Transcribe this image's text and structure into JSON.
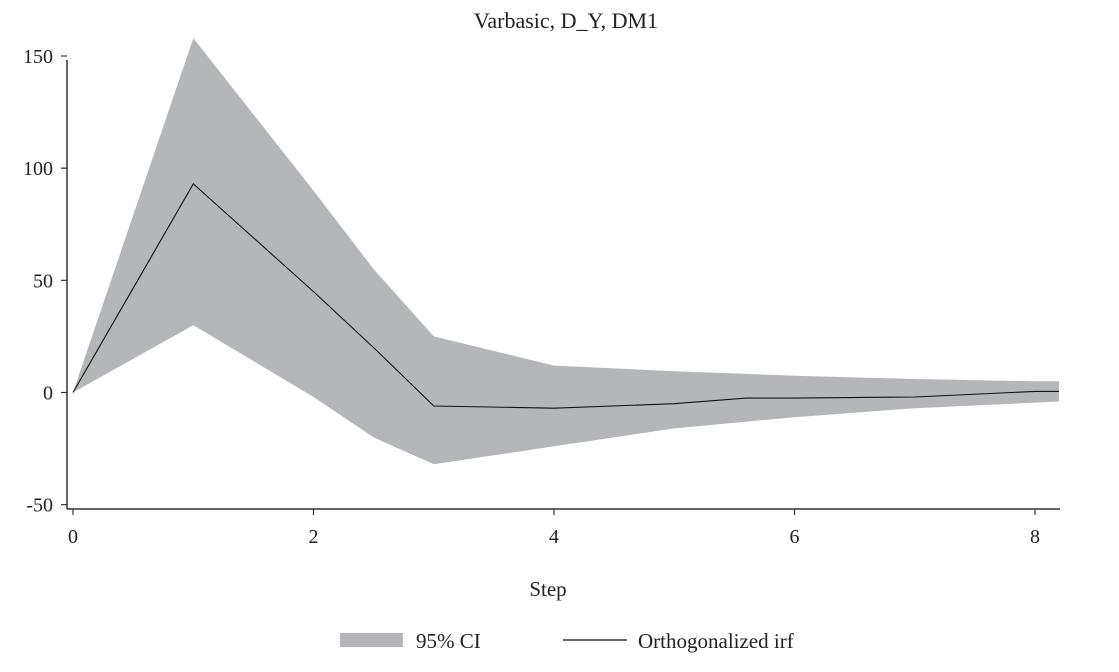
{
  "chart_data": {
    "type": "area",
    "title": "Varbasic, D_Y, DM1",
    "xlabel": "Step",
    "ylabel": "",
    "xlim": [
      0,
      8.2
    ],
    "ylim": [
      -50,
      150
    ],
    "x_ticks": [
      0,
      2,
      4,
      6,
      8
    ],
    "y_ticks": [
      -50,
      0,
      50,
      100,
      150
    ],
    "grid": false,
    "legend_position": "bottom-center",
    "series": [
      {
        "name": "95% CI",
        "kind": "band",
        "x": [
          0,
          1,
          2,
          2.5,
          3,
          4,
          5,
          6,
          7,
          8,
          8.2
        ],
        "lower": [
          0,
          30,
          -2,
          -20,
          -32,
          -24,
          -16,
          -11,
          -7,
          -4.5,
          -4
        ],
        "upper": [
          0,
          158,
          90,
          55,
          25,
          12,
          9.5,
          7.5,
          6,
          5,
          5
        ],
        "color": "#b5b6b9"
      },
      {
        "name": "Orthogonalized irf",
        "kind": "line",
        "x": [
          0,
          1,
          2,
          2.5,
          3,
          4,
          5,
          5.6,
          6,
          7,
          8,
          8.2
        ],
        "values": [
          0,
          93,
          45,
          20,
          -6,
          -7,
          -5,
          -2.5,
          -2.5,
          -2,
          0.5,
          0.5
        ],
        "color": "#111111"
      }
    ]
  }
}
